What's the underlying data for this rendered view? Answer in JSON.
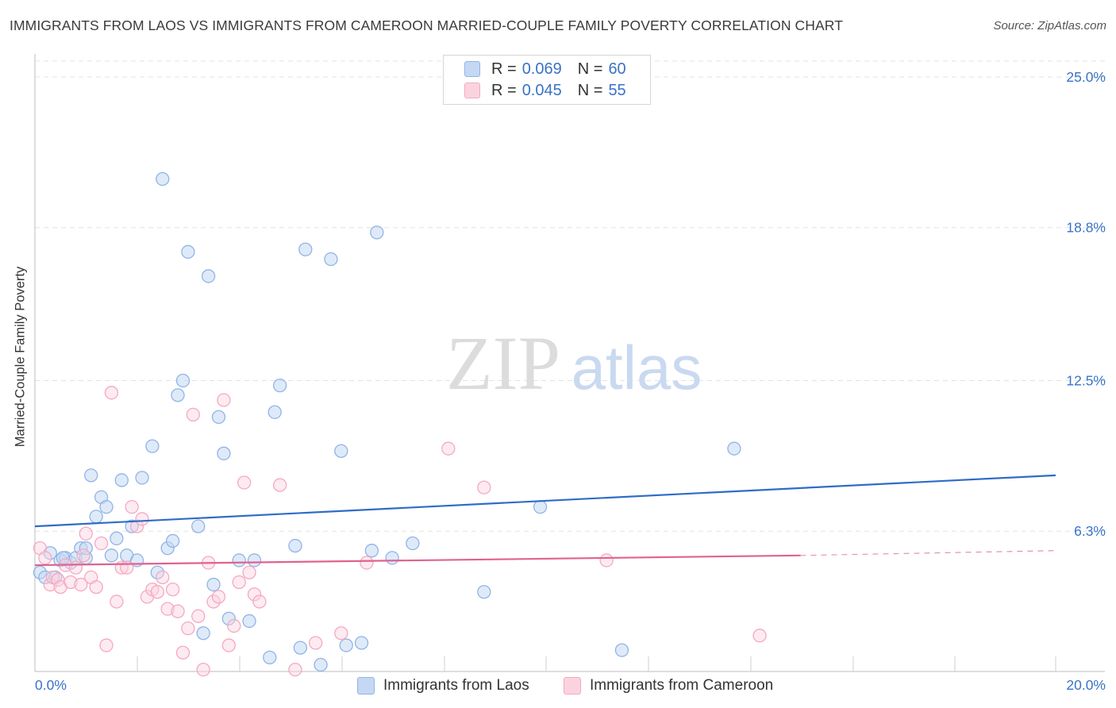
{
  "title": "IMMIGRANTS FROM LAOS VS IMMIGRANTS FROM CAMEROON MARRIED-COUPLE FAMILY POVERTY CORRELATION CHART",
  "source": "Source: ZipAtlas.com",
  "watermark": {
    "zip": "ZIP",
    "atlas": "atlas"
  },
  "legend": {
    "r_label": "R =",
    "n_label": "N =",
    "rows": [
      {
        "r": "0.069",
        "n": "60"
      },
      {
        "r": "0.045",
        "n": "55"
      }
    ]
  },
  "chart_data": {
    "type": "scatter",
    "ylabel": "Married-Couple Family Poverty",
    "x_tick_labels": [
      "0.0%",
      "20.0%"
    ],
    "y_tick_labels": [
      "25.0%",
      "18.8%",
      "12.5%",
      "6.3%"
    ],
    "y_ticks": [
      25.0,
      18.8,
      12.5,
      6.3
    ],
    "xlim": [
      0,
      20
    ],
    "ylim": [
      0,
      25
    ],
    "grid": true,
    "legend_position": "top-center",
    "series": [
      {
        "name": "Immigrants from Laos",
        "color": "#8fb4e8",
        "trend_color": "#2f6cc9",
        "trend": {
          "x0": 0.0,
          "y0": 6.5,
          "x1": 20.0,
          "y1": 8.6
        },
        "points": [
          [
            0.1,
            4.6
          ],
          [
            0.2,
            4.4
          ],
          [
            0.3,
            5.4
          ],
          [
            0.4,
            4.4
          ],
          [
            0.5,
            5.1
          ],
          [
            0.6,
            5.2
          ],
          [
            0.7,
            5.0
          ],
          [
            0.8,
            5.2
          ],
          [
            0.9,
            5.6
          ],
          [
            1.0,
            5.2
          ],
          [
            1.1,
            8.6
          ],
          [
            1.2,
            6.9
          ],
          [
            1.3,
            7.7
          ],
          [
            1.4,
            7.3
          ],
          [
            1.5,
            5.3
          ],
          [
            1.6,
            6.0
          ],
          [
            1.7,
            8.4
          ],
          [
            1.8,
            5.3
          ],
          [
            1.9,
            6.5
          ],
          [
            2.0,
            5.1
          ],
          [
            2.1,
            8.5
          ],
          [
            2.3,
            9.8
          ],
          [
            2.4,
            4.6
          ],
          [
            2.5,
            20.8
          ],
          [
            2.6,
            5.6
          ],
          [
            2.7,
            5.9
          ],
          [
            2.8,
            11.9
          ],
          [
            2.9,
            12.5
          ],
          [
            3.0,
            17.8
          ],
          [
            3.2,
            6.5
          ],
          [
            3.3,
            2.1
          ],
          [
            3.4,
            16.8
          ],
          [
            3.5,
            4.1
          ],
          [
            3.6,
            11.0
          ],
          [
            3.7,
            9.5
          ],
          [
            3.8,
            2.7
          ],
          [
            4.0,
            5.1
          ],
          [
            4.2,
            2.6
          ],
          [
            4.3,
            5.1
          ],
          [
            4.6,
            1.1
          ],
          [
            4.7,
            11.2
          ],
          [
            4.8,
            12.3
          ],
          [
            5.1,
            5.7
          ],
          [
            5.2,
            1.5
          ],
          [
            5.3,
            17.9
          ],
          [
            5.6,
            0.8
          ],
          [
            5.8,
            17.5
          ],
          [
            6.0,
            9.6
          ],
          [
            6.1,
            1.6
          ],
          [
            6.4,
            1.7
          ],
          [
            6.6,
            5.5
          ],
          [
            6.7,
            18.6
          ],
          [
            7.0,
            5.2
          ],
          [
            7.4,
            5.8
          ],
          [
            8.8,
            3.8
          ],
          [
            9.9,
            7.3
          ],
          [
            11.5,
            1.4
          ],
          [
            13.7,
            9.7
          ],
          [
            1.0,
            5.6
          ],
          [
            0.55,
            5.2
          ]
        ]
      },
      {
        "name": "Immigrants from Cameroon",
        "color": "#f4a9c0",
        "trend_color": "#e0628f",
        "trend": {
          "x0": 0.0,
          "y0": 4.9,
          "x1": 15.0,
          "y1": 5.3
        },
        "trend_dashed": {
          "x0": 15.0,
          "y0": 5.3,
          "x1": 20.0,
          "y1": 5.5
        },
        "points": [
          [
            0.1,
            5.6
          ],
          [
            0.2,
            5.2
          ],
          [
            0.3,
            4.1
          ],
          [
            0.35,
            4.4
          ],
          [
            0.45,
            4.3
          ],
          [
            0.5,
            4.0
          ],
          [
            0.6,
            4.9
          ],
          [
            0.7,
            4.2
          ],
          [
            0.8,
            4.8
          ],
          [
            0.9,
            4.1
          ],
          [
            0.95,
            5.3
          ],
          [
            1.0,
            6.2
          ],
          [
            1.1,
            4.4
          ],
          [
            1.2,
            4.0
          ],
          [
            1.3,
            5.8
          ],
          [
            1.4,
            1.6
          ],
          [
            1.5,
            12.0
          ],
          [
            1.6,
            3.4
          ],
          [
            1.7,
            4.8
          ],
          [
            1.8,
            4.8
          ],
          [
            1.9,
            7.3
          ],
          [
            2.0,
            6.5
          ],
          [
            2.1,
            6.8
          ],
          [
            2.2,
            3.6
          ],
          [
            2.3,
            3.9
          ],
          [
            2.4,
            3.8
          ],
          [
            2.5,
            4.4
          ],
          [
            2.6,
            3.1
          ],
          [
            2.7,
            3.9
          ],
          [
            2.8,
            3.0
          ],
          [
            2.9,
            1.3
          ],
          [
            3.0,
            2.3
          ],
          [
            3.1,
            11.1
          ],
          [
            3.2,
            2.8
          ],
          [
            3.3,
            0.6
          ],
          [
            3.4,
            5.0
          ],
          [
            3.5,
            3.4
          ],
          [
            3.6,
            3.6
          ],
          [
            3.7,
            11.7
          ],
          [
            3.8,
            1.6
          ],
          [
            3.9,
            2.4
          ],
          [
            4.0,
            4.2
          ],
          [
            4.1,
            8.3
          ],
          [
            4.2,
            4.6
          ],
          [
            4.3,
            3.7
          ],
          [
            4.4,
            3.4
          ],
          [
            4.8,
            8.2
          ],
          [
            5.1,
            0.6
          ],
          [
            5.5,
            1.7
          ],
          [
            6.0,
            2.1
          ],
          [
            6.5,
            5.0
          ],
          [
            8.1,
            9.7
          ],
          [
            8.8,
            8.1
          ],
          [
            11.2,
            5.1
          ],
          [
            14.2,
            2.0
          ]
        ]
      }
    ]
  },
  "bottom_legend": [
    "Immigrants from Laos",
    "Immigrants from Cameroon"
  ]
}
